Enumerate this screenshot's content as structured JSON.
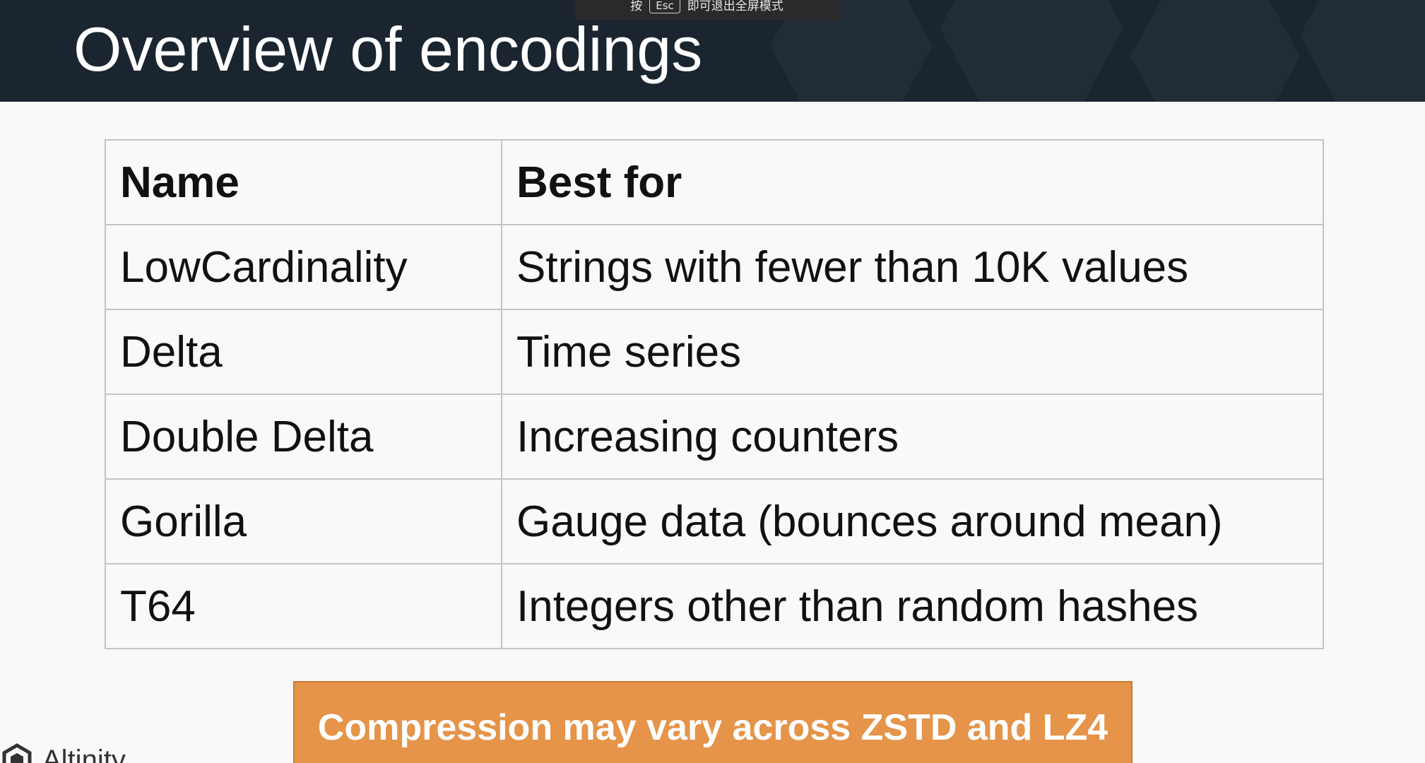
{
  "slide": {
    "title": "Overview of encodings",
    "hint": {
      "prefix": "按",
      "key": "Esc",
      "suffix": "即可退出全屏模式"
    }
  },
  "table": {
    "headers": [
      "Name",
      "Best for"
    ],
    "rows": [
      {
        "name": "LowCardinality",
        "best_for": "Strings with fewer than 10K values"
      },
      {
        "name": "Delta",
        "best_for": "Time series"
      },
      {
        "name": "Double Delta",
        "best_for": "Increasing counters"
      },
      {
        "name": "Gorilla",
        "best_for": "Gauge data (bounces around mean)"
      },
      {
        "name": "T64",
        "best_for": "Integers other than random hashes"
      }
    ]
  },
  "callout": {
    "text": "Compression may vary across ZSTD and LZ4",
    "background": "#e59449"
  },
  "branding": {
    "logo_text": "Altinity",
    "logo_icon": "altinity-hexagon-icon"
  },
  "colors": {
    "header_background": "#1a2530",
    "slide_background": "#f9f9f9",
    "table_border": "#c4c4c4"
  }
}
